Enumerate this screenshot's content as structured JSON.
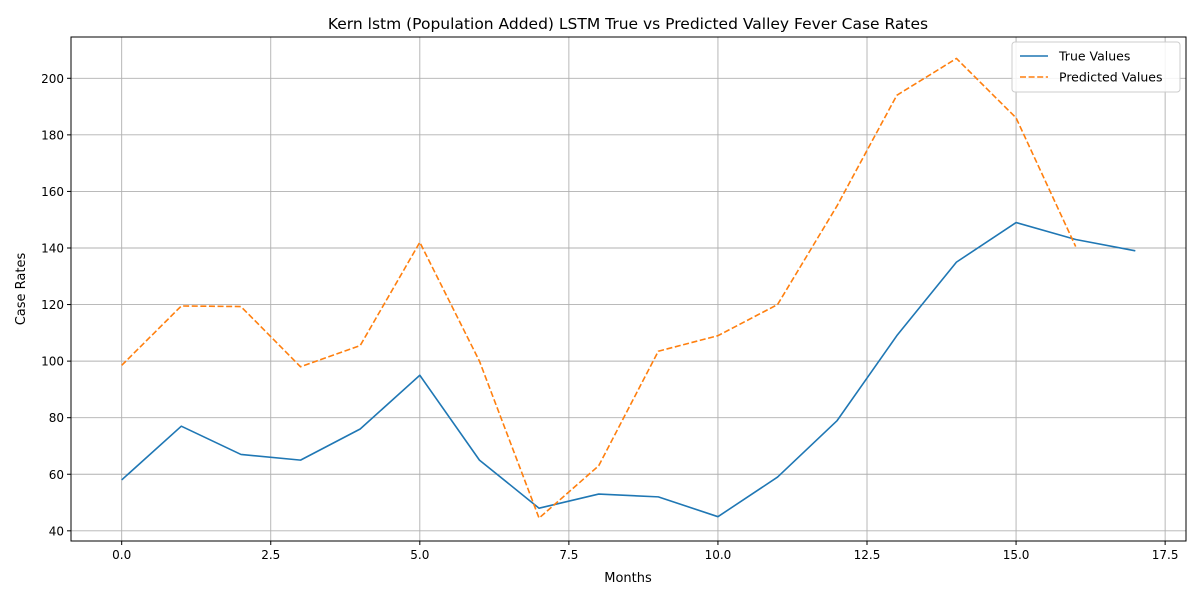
{
  "chart_data": {
    "type": "line",
    "title": "Kern lstm (Population Added) LSTM True vs Predicted Valley Fever Case Rates",
    "xlabel": "Months",
    "ylabel": "Case Rates",
    "xlim": [
      -0.85,
      17.85
    ],
    "ylim": [
      36.4,
      214.6
    ],
    "xticks": [
      0.0,
      2.5,
      5.0,
      7.5,
      10.0,
      12.5,
      15.0,
      17.5
    ],
    "xtick_labels": [
      "0.0",
      "2.5",
      "5.0",
      "7.5",
      "10.0",
      "12.5",
      "15.0",
      "17.5"
    ],
    "yticks": [
      40,
      60,
      80,
      100,
      120,
      140,
      160,
      180,
      200
    ],
    "ytick_labels": [
      "40",
      "60",
      "80",
      "100",
      "120",
      "140",
      "160",
      "180",
      "200"
    ],
    "grid": true,
    "legend_position": "top-right",
    "series": [
      {
        "name": "True Values",
        "color": "#1f77b4",
        "dash": "solid",
        "x": [
          0,
          1,
          2,
          3,
          4,
          5,
          6,
          7,
          8,
          9,
          10,
          11,
          12,
          13,
          14,
          15,
          16,
          17
        ],
        "y": [
          58,
          77,
          67,
          65,
          76,
          95,
          65,
          48,
          53,
          52,
          45,
          59,
          79,
          109,
          135,
          149,
          143,
          139
        ]
      },
      {
        "name": "Predicted Values",
        "color": "#ff7f0e",
        "dash": "dashed",
        "x": [
          0,
          1,
          2,
          3,
          4,
          5,
          6,
          7,
          8,
          9,
          10,
          11,
          12,
          13,
          14,
          15,
          16
        ],
        "y": [
          98.5,
          119.5,
          119.3,
          98,
          105.5,
          142,
          100,
          44.5,
          63,
          103.5,
          109,
          120,
          155,
          194,
          207,
          186,
          140.5
        ]
      }
    ]
  }
}
